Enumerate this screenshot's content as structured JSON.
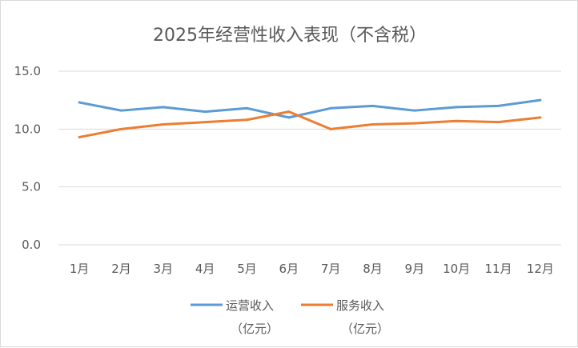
{
  "chart_data": {
    "type": "line",
    "title": "2025年经营性收入表现（不含税）",
    "xlabel": "",
    "ylabel": "",
    "categories": [
      "1月",
      "2月",
      "3月",
      "4月",
      "5月",
      "6月",
      "7月",
      "8月",
      "9月",
      "10月",
      "11月",
      "12月"
    ],
    "ylim": [
      0,
      15
    ],
    "yticks": [
      "0.0",
      "5.0",
      "10.0",
      "15.0"
    ],
    "grid": true,
    "legend_position": "bottom",
    "series": [
      {
        "name": "运营收入（亿元）",
        "legend_lines": [
          "运营收入",
          "（亿元）"
        ],
        "color": "#5b9bd5",
        "values": [
          12.3,
          11.6,
          11.9,
          11.5,
          11.8,
          11.0,
          11.8,
          12.0,
          11.6,
          11.9,
          12.0,
          12.5
        ]
      },
      {
        "name": "服务收入（亿元）",
        "legend_lines": [
          "服务收入",
          "（亿元）"
        ],
        "color": "#ed7d31",
        "values": [
          9.3,
          10.0,
          10.4,
          10.6,
          10.8,
          11.5,
          10.0,
          10.4,
          10.5,
          10.7,
          10.6,
          11.0
        ]
      }
    ]
  }
}
